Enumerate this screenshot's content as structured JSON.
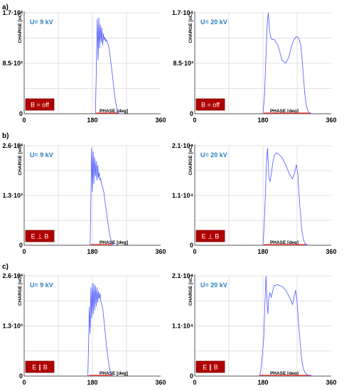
{
  "rows": [
    {
      "label": "a)",
      "badge": "B = off"
    },
    {
      "label": "b)",
      "badge": "E ⊥ B"
    },
    {
      "label": "c)",
      "badge": "E ∥ B"
    }
  ],
  "chart_data": [
    {
      "type": "line",
      "row": "a)",
      "annotation": "U= 9 kV",
      "badge": "B = off",
      "xlabel": "PHASE [deg]",
      "ylabel": "CHARGE [nC]",
      "xticks": [
        "0",
        "180",
        "360"
      ],
      "yticks": [
        "0",
        "8.5·10²",
        "1.7·10³"
      ],
      "xlim": [
        0,
        360
      ],
      "ylim": [
        0,
        1700
      ],
      "series": [
        {
          "x": [
            188,
            191,
            193,
            195,
            197,
            199,
            201,
            203,
            205,
            207,
            209,
            211,
            213,
            215,
            217,
            219,
            221,
            224,
            228,
            232,
            236,
            240,
            244,
            248,
            250
          ],
          "y": [
            0,
            1000,
            1600,
            900,
            1620,
            1100,
            1500,
            1200,
            1450,
            1150,
            1350,
            1250,
            1280,
            1220,
            1250,
            1200,
            1180,
            1100,
            900,
            700,
            450,
            250,
            100,
            20,
            0
          ]
        }
      ]
    },
    {
      "type": "line",
      "row": "a)",
      "annotation": "U= 20 kV",
      "badge": "B = off",
      "xlabel": "PHASE [deg]",
      "ylabel": "CHARGE [nC]",
      "xticks": [
        "0",
        "180",
        "360"
      ],
      "yticks": [
        "0",
        "8.5·10³",
        "1.7·10⁴"
      ],
      "xlim": [
        0,
        360
      ],
      "ylim": [
        0,
        17000
      ],
      "series": [
        {
          "x": [
            180,
            184,
            188,
            191,
            194,
            197,
            200,
            204,
            210,
            220,
            230,
            240,
            248,
            256,
            262,
            268,
            274,
            280,
            286,
            290,
            294,
            298,
            302,
            306,
            310
          ],
          "y": [
            0,
            3000,
            10000,
            15000,
            17000,
            14000,
            13000,
            12500,
            12500,
            11500,
            9000,
            8500,
            9500,
            11500,
            12500,
            13000,
            12800,
            11500,
            7000,
            3500,
            1500,
            600,
            200,
            50,
            0
          ]
        }
      ]
    },
    {
      "type": "line",
      "row": "b)",
      "annotation": "U= 9 kV",
      "badge": "E ⊥ B",
      "xlabel": "PHASE [deg]",
      "ylabel": "CHARGE [nC]",
      "xticks": [
        "0",
        "180",
        "360"
      ],
      "yticks": [
        "0",
        "1.3·10³",
        "2.6·10³"
      ],
      "xlim": [
        0,
        360
      ],
      "ylim": [
        0,
        2600
      ],
      "series": [
        {
          "x": [
            174,
            176,
            178,
            180,
            182,
            184,
            186,
            188,
            190,
            192,
            194,
            196,
            198,
            200,
            202,
            204,
            206,
            210,
            214,
            218,
            222,
            226,
            230,
            234,
            236
          ],
          "y": [
            0,
            1200,
            2550,
            1400,
            2450,
            1600,
            2300,
            1800,
            2200,
            1700,
            2100,
            1750,
            1900,
            1700,
            1750,
            1600,
            1550,
            1400,
            1100,
            800,
            500,
            250,
            100,
            20,
            0
          ]
        }
      ]
    },
    {
      "type": "line",
      "row": "b)",
      "annotation": "U= 20 kV",
      "badge": "E ⊥ B",
      "xlabel": "PHASE [deg]",
      "ylabel": "CHARGE [nC]",
      "xticks": [
        "0",
        "180",
        "360"
      ],
      "yticks": [
        "0",
        "1.1·10⁴",
        "2.1·10⁴"
      ],
      "xlim": [
        0,
        360
      ],
      "ylim": [
        0,
        21000
      ],
      "series": [
        {
          "x": [
            180,
            183,
            186,
            189,
            192,
            194,
            196,
            199,
            202,
            206,
            210,
            216,
            222,
            230,
            240,
            250,
            258,
            264,
            268,
            272,
            274,
            278,
            282,
            286,
            290,
            294,
            300
          ],
          "y": [
            0,
            4000,
            10000,
            17000,
            20500,
            17000,
            14000,
            13500,
            15000,
            17500,
            19000,
            19500,
            19200,
            18500,
            17000,
            15000,
            14000,
            15500,
            17000,
            15000,
            12000,
            7500,
            3500,
            1500,
            500,
            100,
            0
          ]
        }
      ]
    },
    {
      "type": "line",
      "row": "c)",
      "annotation": "U= 9 kV",
      "badge": "E ∥ B",
      "xlabel": "PHASE [deg]",
      "ylabel": "CHARGE [nC]",
      "xticks": [
        "0",
        "180",
        "360"
      ],
      "yticks": [
        "0",
        "1.3·10³",
        "2.6·10³"
      ],
      "xlim": [
        0,
        360
      ],
      "ylim": [
        0,
        2600
      ],
      "series": [
        {
          "x": [
            168,
            170,
            172,
            174,
            176,
            178,
            180,
            182,
            184,
            186,
            188,
            190,
            192,
            194,
            196,
            198,
            200,
            202,
            204,
            208,
            212,
            216,
            220,
            224,
            228,
            232,
            236
          ],
          "y": [
            0,
            900,
            1800,
            1100,
            2300,
            1500,
            2400,
            1600,
            2400,
            1700,
            2350,
            1800,
            2300,
            1900,
            2200,
            2000,
            2150,
            1950,
            1900,
            1700,
            1300,
            900,
            550,
            250,
            90,
            20,
            0
          ]
        }
      ]
    },
    {
      "type": "line",
      "row": "c)",
      "annotation": "U= 20 kV",
      "badge": "E ∥ B",
      "xlabel": "PHASE [deg]",
      "ylabel": "CHARGE [nC]",
      "xticks": [
        "0",
        "180",
        "360"
      ],
      "yticks": [
        "0",
        "1.1·10⁴",
        "2.1·10⁴"
      ],
      "xlim": [
        0,
        360
      ],
      "ylim": [
        0,
        21000
      ],
      "series": [
        {
          "x": [
            170,
            174,
            178,
            182,
            185,
            188,
            191,
            193,
            195,
            198,
            202,
            206,
            210,
            214,
            218,
            222,
            230,
            240,
            250,
            258,
            262,
            266,
            270,
            274,
            278,
            282,
            286,
            290,
            296,
            304,
            312
          ],
          "y": [
            0,
            1000,
            4000,
            8000,
            15000,
            21000,
            15000,
            13000,
            16000,
            17500,
            16500,
            18000,
            19000,
            19000,
            19200,
            19000,
            18800,
            18000,
            16500,
            15000,
            16500,
            18000,
            15500,
            11000,
            7000,
            3500,
            1700,
            800,
            300,
            50,
            0
          ]
        }
      ]
    }
  ]
}
